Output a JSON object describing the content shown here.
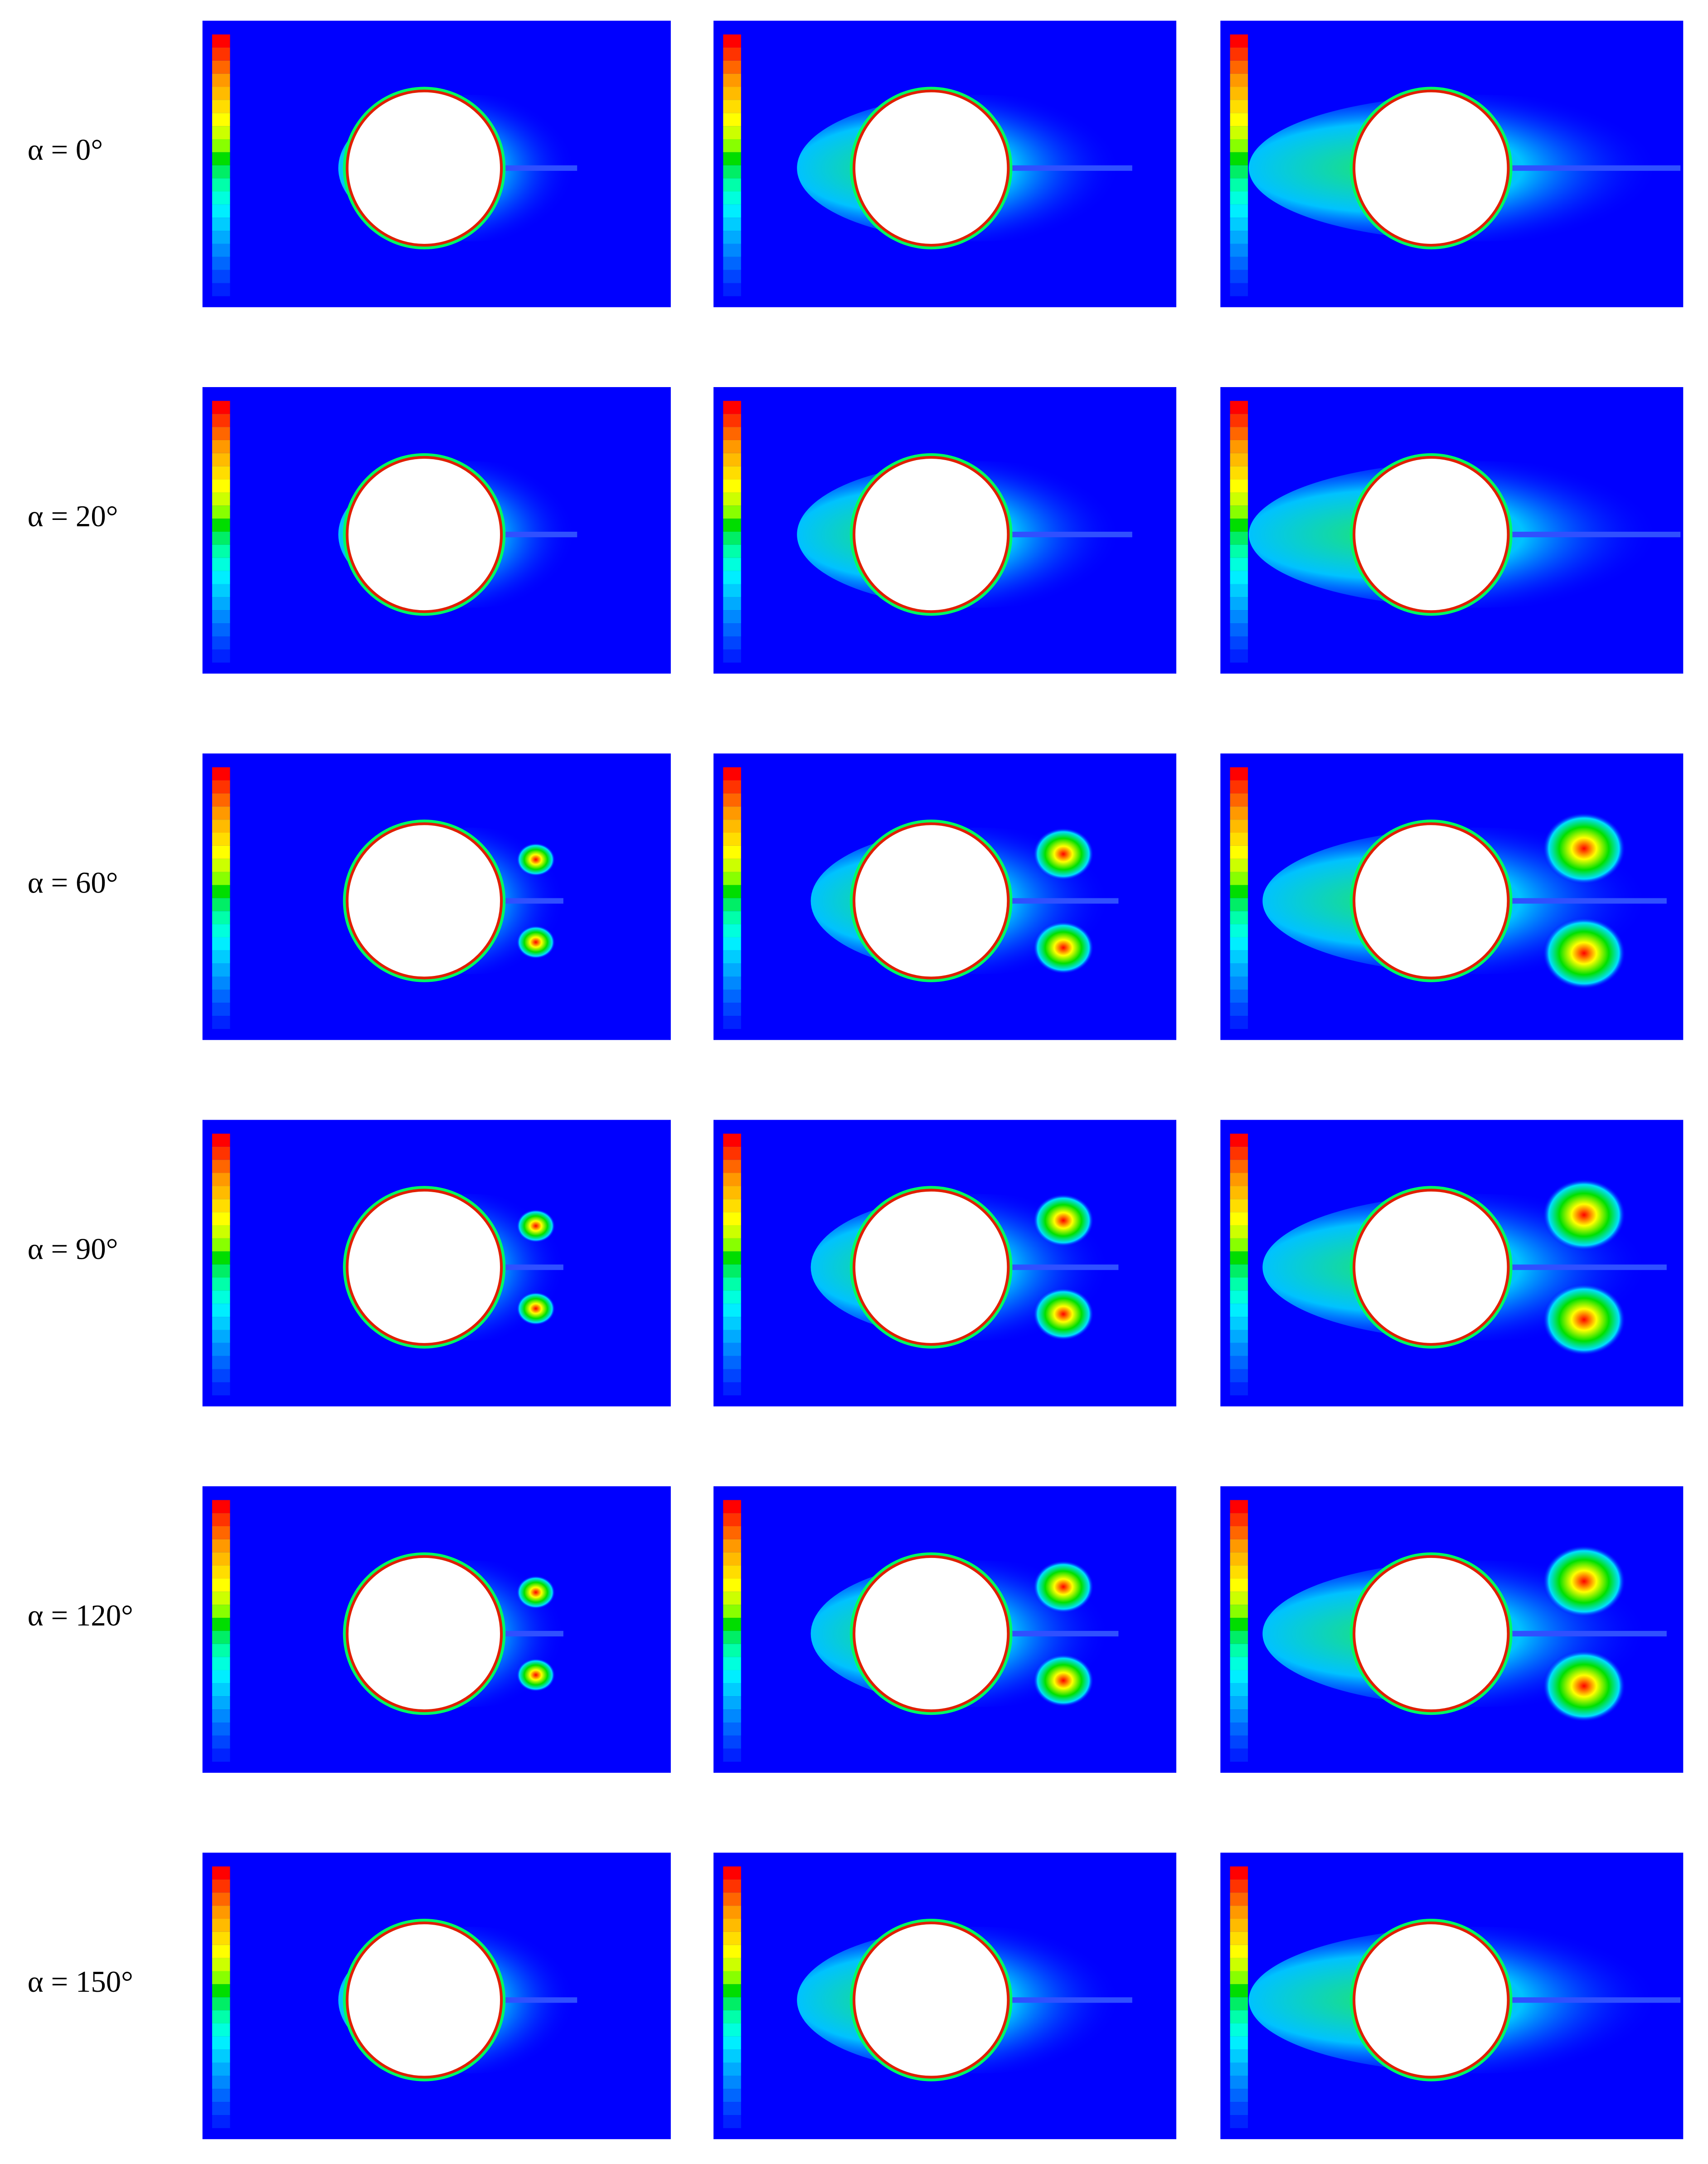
{
  "rows": [
    {
      "label": "α = 0°"
    },
    {
      "label": "α = 20°"
    },
    {
      "label": "α = 60°"
    },
    {
      "label": "α = 90°"
    },
    {
      "label": "α = 120°"
    },
    {
      "label": "α = 150°"
    }
  ]
}
